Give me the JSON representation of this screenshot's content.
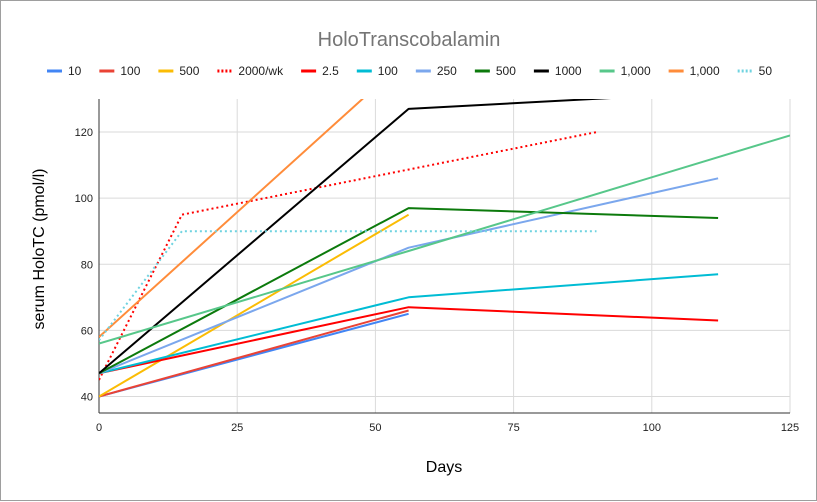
{
  "chart_data": {
    "type": "line",
    "title": "HoloTranscobalamin",
    "xlabel": "Days",
    "ylabel": "serum HoloTC (pmol/l)",
    "xlim": [
      0,
      125
    ],
    "ylim": [
      35,
      130
    ],
    "x_ticks": [
      0,
      25,
      50,
      75,
      100,
      125
    ],
    "y_ticks": [
      40,
      60,
      80,
      100,
      120
    ],
    "grid": true,
    "legend": "top",
    "series": [
      {
        "name": "10",
        "color": "#4285f4",
        "dash": "solid",
        "points": [
          [
            0,
            40
          ],
          [
            56,
            65
          ]
        ]
      },
      {
        "name": "100",
        "color": "#ea4335",
        "dash": "solid",
        "points": [
          [
            0,
            40
          ],
          [
            56,
            66
          ]
        ]
      },
      {
        "name": "500",
        "color": "#fbbc04",
        "dash": "solid",
        "points": [
          [
            0,
            40
          ],
          [
            56,
            95
          ]
        ]
      },
      {
        "name": "2000/wk",
        "color": "#ff0000",
        "dash": "dotted",
        "points": [
          [
            0,
            45
          ],
          [
            15,
            95
          ],
          [
            90,
            120
          ]
        ]
      },
      {
        "name": "2.5",
        "color": "#ff0000",
        "dash": "solid",
        "points": [
          [
            0,
            47
          ],
          [
            56,
            67
          ],
          [
            112,
            63
          ]
        ]
      },
      {
        "name": "100",
        "color": "#00bcd4",
        "dash": "solid",
        "points": [
          [
            0,
            47
          ],
          [
            56,
            70
          ],
          [
            112,
            77
          ]
        ]
      },
      {
        "name": "250",
        "color": "#7ba7ed",
        "dash": "solid",
        "points": [
          [
            0,
            47
          ],
          [
            56,
            85
          ],
          [
            112,
            106
          ]
        ]
      },
      {
        "name": "500",
        "color": "#0c7a0c",
        "dash": "solid",
        "points": [
          [
            0,
            47
          ],
          [
            56,
            97
          ],
          [
            112,
            94
          ]
        ]
      },
      {
        "name": "1000",
        "color": "#000000",
        "dash": "solid",
        "points": [
          [
            0,
            47
          ],
          [
            56,
            127
          ],
          [
            95,
            130.5
          ]
        ]
      },
      {
        "name": "1,000",
        "color": "#57c78a",
        "dash": "solid",
        "points": [
          [
            0,
            56
          ],
          [
            56,
            84
          ],
          [
            125,
            119
          ]
        ]
      },
      {
        "name": "1,000",
        "color": "#ff8c3a",
        "dash": "solid",
        "points": [
          [
            0,
            58
          ],
          [
            48,
            130.5
          ]
        ]
      },
      {
        "name": "50",
        "color": "#6fd3e0",
        "dash": "dotted",
        "points": [
          [
            0,
            57
          ],
          [
            15,
            90
          ],
          [
            90,
            90
          ]
        ]
      }
    ]
  }
}
